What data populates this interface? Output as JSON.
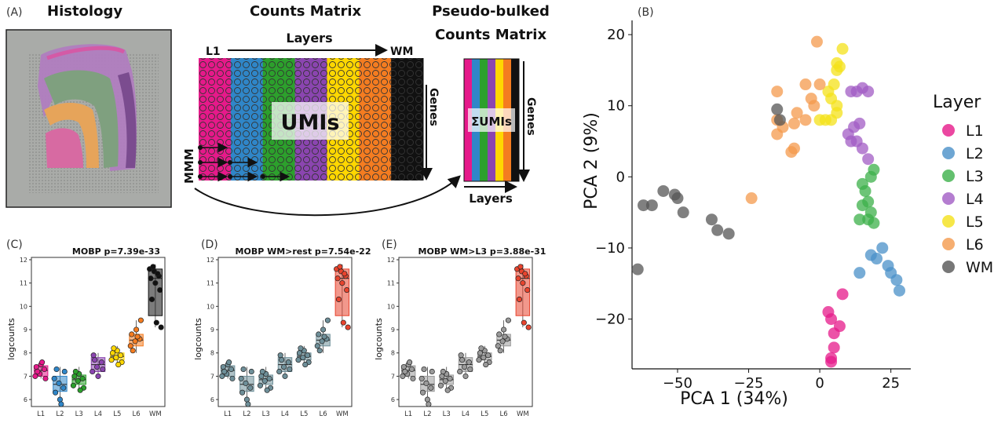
{
  "panels": {
    "A": {
      "label": "(A)",
      "histology_title": "Histology",
      "counts_title": "Counts Matrix",
      "pseudo_title_line1": "Pseudo-bulked",
      "pseudo_title_line2": "Counts Matrix",
      "layers_label": "Layers",
      "l1_label": "L1",
      "wm_label": "WM",
      "genes_label": "Genes",
      "umis_label": "UMIs",
      "sum_umis_label": "ΣUMIs",
      "pseudo_layers_label": "Layers",
      "layer_colors": [
        "#e6198a",
        "#2f86c8",
        "#2ca02c",
        "#8b45b0",
        "#ffd700",
        "#f47c20",
        "#111111"
      ]
    },
    "B": {
      "label": "(B)",
      "chart_data": {
        "type": "scatter",
        "xlabel": "PCA 1 (34%)",
        "ylabel": "PCA 2 (9%)",
        "xlim": [
          -66,
          32
        ],
        "ylim": [
          -27,
          22
        ],
        "xticks": [
          -50,
          -25,
          0,
          25
        ],
        "yticks": [
          -20,
          -10,
          0,
          10,
          20
        ],
        "legend_title": "Layer",
        "legend_position": "right",
        "series": [
          {
            "name": "L1",
            "color": "#e6198a",
            "points": [
              [
                3,
                -19
              ],
              [
                4,
                -20
              ],
              [
                5,
                -22
              ],
              [
                7,
                -21
              ],
              [
                8,
                -16.5
              ],
              [
                4,
                -25.5
              ],
              [
                4,
                -26
              ],
              [
                5,
                -24
              ]
            ]
          },
          {
            "name": "L2",
            "color": "#4a90c8",
            "points": [
              [
                18,
                -11
              ],
              [
                20,
                -11.5
              ],
              [
                22,
                -10
              ],
              [
                24,
                -12.5
              ],
              [
                25,
                -13.5
              ],
              [
                27,
                -14.5
              ],
              [
                28,
                -16
              ],
              [
                14,
                -13.5
              ]
            ]
          },
          {
            "name": "L3",
            "color": "#3cb04a",
            "points": [
              [
                19,
                1
              ],
              [
                18,
                0
              ],
              [
                15,
                -1
              ],
              [
                16,
                -2
              ],
              [
                17,
                -3.5
              ],
              [
                18,
                -5
              ],
              [
                15,
                -4
              ],
              [
                17,
                -6
              ],
              [
                19,
                -6.5
              ],
              [
                14,
                -6
              ]
            ]
          },
          {
            "name": "L4",
            "color": "#a15cc4",
            "points": [
              [
                11,
                12
              ],
              [
                13,
                12
              ],
              [
                15,
                12.5
              ],
              [
                17,
                12
              ],
              [
                12,
                7
              ],
              [
                14,
                7.5
              ],
              [
                11,
                5
              ],
              [
                13,
                5
              ],
              [
                15,
                4
              ],
              [
                17,
                2.5
              ],
              [
                10,
                6
              ]
            ]
          },
          {
            "name": "L5",
            "color": "#f4e11a",
            "points": [
              [
                8,
                18
              ],
              [
                6,
                16
              ],
              [
                7,
                15.5
              ],
              [
                6,
                15
              ],
              [
                5,
                13
              ],
              [
                3,
                12
              ],
              [
                4,
                11
              ],
              [
                6,
                10
              ],
              [
                0,
                8
              ],
              [
                2,
                8
              ],
              [
                4,
                8
              ],
              [
                6,
                9
              ]
            ]
          },
          {
            "name": "L6",
            "color": "#f49a4c",
            "points": [
              [
                -1,
                19
              ],
              [
                -15,
                12
              ],
              [
                0,
                13
              ],
              [
                -5,
                13
              ],
              [
                -3,
                11
              ],
              [
                -2,
                10
              ],
              [
                -15,
                8
              ],
              [
                -13,
                7
              ],
              [
                -8,
                9
              ],
              [
                -5,
                8
              ],
              [
                -9,
                7.5
              ],
              [
                -15,
                6
              ],
              [
                -9,
                4
              ],
              [
                -10,
                3.5
              ],
              [
                -24,
                -3
              ]
            ]
          },
          {
            "name": "WM",
            "color": "#555555",
            "points": [
              [
                -15,
                9.5
              ],
              [
                -14,
                8
              ],
              [
                -62,
                -4
              ],
              [
                -59,
                -4
              ],
              [
                -55,
                -2
              ],
              [
                -51,
                -2.5
              ],
              [
                -50,
                -3
              ],
              [
                -48,
                -5
              ],
              [
                -38,
                -6
              ],
              [
                -36,
                -7.5
              ],
              [
                -32,
                -8
              ],
              [
                -64,
                -13
              ]
            ]
          }
        ]
      }
    },
    "C": {
      "label": "(C)",
      "chart_data": {
        "type": "box",
        "title": "MOBP p=7.39e-33",
        "ylabel": "logcounts",
        "categories": [
          "L1",
          "L2",
          "L3",
          "L4",
          "L5",
          "L6",
          "WM"
        ],
        "ylim": [
          5.7,
          12.1
        ],
        "yticks": [
          6,
          7,
          8,
          9,
          10,
          11,
          12
        ],
        "boxes": [
          {
            "q1": 7.0,
            "median": 7.25,
            "q3": 7.45,
            "lo": 6.9,
            "hi": 7.6,
            "points": [
              7.0,
              7.1,
              7.3,
              7.4,
              7.5,
              6.9,
              7.2,
              7.6
            ]
          },
          {
            "q1": 6.35,
            "median": 6.65,
            "q3": 7.0,
            "lo": 5.8,
            "hi": 7.4,
            "points": [
              6.9,
              6.7,
              6.5,
              6.3,
              6.0,
              7.2,
              7.3,
              5.8
            ]
          },
          {
            "q1": 6.65,
            "median": 6.85,
            "q3": 7.05,
            "lo": 6.4,
            "hi": 7.4,
            "points": [
              6.6,
              6.8,
              6.9,
              7.0,
              7.1,
              6.5,
              7.2,
              6.4
            ]
          },
          {
            "q1": 7.2,
            "median": 7.5,
            "q3": 7.8,
            "lo": 6.9,
            "hi": 8.0,
            "points": [
              7.2,
              7.4,
              7.6,
              7.9,
              7.0,
              7.3,
              7.7
            ]
          },
          {
            "q1": 7.7,
            "median": 7.85,
            "q3": 8.0,
            "lo": 7.4,
            "hi": 8.3,
            "points": [
              7.7,
              7.8,
              7.9,
              8.0,
              8.1,
              7.6,
              8.2,
              7.5
            ]
          },
          {
            "q1": 8.3,
            "median": 8.55,
            "q3": 8.8,
            "lo": 8.0,
            "hi": 9.4,
            "points": [
              8.3,
              8.5,
              8.6,
              8.8,
              9.0,
              9.4,
              8.1,
              8.7
            ]
          },
          {
            "q1": 9.6,
            "median": 11.2,
            "q3": 11.6,
            "lo": 9.1,
            "hi": 11.8,
            "points": [
              11.6,
              11.5,
              11.3,
              11.2,
              11.0,
              10.7,
              10.3,
              9.3,
              9.1,
              11.7,
              11.4
            ]
          }
        ],
        "box_fills": [
          "#e6198a",
          "#2f86c8",
          "#2ca02c",
          "#8b45b0",
          "#ffd700",
          "#f47c20",
          "#111111"
        ]
      }
    },
    "D": {
      "label": "(D)",
      "chart_data": {
        "type": "box",
        "title": "MOBP WM>rest p=7.54e-22",
        "ylabel": "logcounts",
        "categories": [
          "L1",
          "L2",
          "L3",
          "L4",
          "L5",
          "L6",
          "WM"
        ],
        "box_fills": [
          "#6e8f99",
          "#6e8f99",
          "#6e8f99",
          "#6e8f99",
          "#6e8f99",
          "#6e8f99",
          "#e8442e"
        ]
      }
    },
    "E": {
      "label": "(E)",
      "chart_data": {
        "type": "box",
        "title": "MOBP WM>L3 p=3.88e-31",
        "ylabel": "logcounts",
        "categories": [
          "L1",
          "L2",
          "L3",
          "L4",
          "L5",
          "L6",
          "WM"
        ],
        "box_fills": [
          "#9a9a9a",
          "#9a9a9a",
          "#9a9a9a",
          "#9a9a9a",
          "#9a9a9a",
          "#9a9a9a",
          "#e8442e"
        ]
      }
    }
  }
}
